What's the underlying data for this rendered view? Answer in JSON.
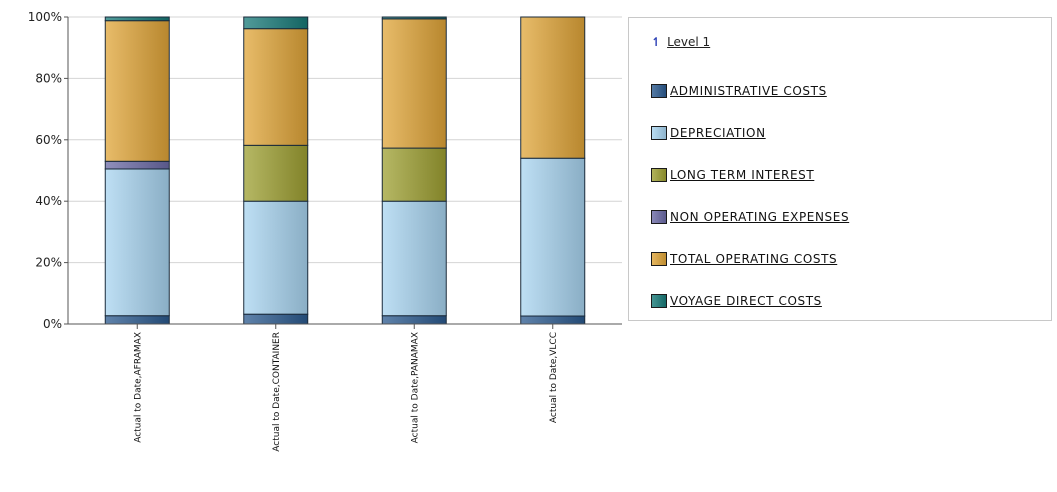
{
  "chart_data": {
    "type": "bar",
    "stacked": true,
    "normalized": true,
    "categories": [
      "Actual to Date,AFRAMAX",
      "Actual to Date,CONTAINER",
      "Actual to Date,PANAMAX",
      "Actual to Date,VLCC"
    ],
    "series": [
      {
        "name": "ADMINISTRATIVE COSTS",
        "color": "#2b5a8f",
        "values": [
          2.7,
          3.2,
          2.7,
          2.6
        ]
      },
      {
        "name": "DEPRECIATION",
        "color": "#a8d4f0",
        "values": [
          47.8,
          36.8,
          37.3,
          51.4
        ]
      },
      {
        "name": "LONG TERM INTEREST",
        "color": "#9ea032",
        "values": [
          0,
          18.2,
          17.3,
          0
        ]
      },
      {
        "name": "NON OPERATING EXPENSES",
        "color": "#6b6aa6",
        "values": [
          2.5,
          0,
          0,
          0
        ]
      },
      {
        "name": "TOTAL OPERATING COSTS",
        "color": "#e0a538",
        "values": [
          45.8,
          38.0,
          42.1,
          46.0
        ]
      },
      {
        "name": "VOYAGE DIRECT COSTS",
        "color": "#177a78",
        "values": [
          1.2,
          3.8,
          0.6,
          0
        ]
      }
    ],
    "yticks": [
      "0%",
      "20%",
      "40%",
      "60%",
      "80%",
      "100%"
    ],
    "ylim": [
      0,
      100
    ],
    "grid": true,
    "legend_position": "right"
  },
  "legend": {
    "up_link": "Level 1",
    "up_icon": "up-arrow-icon"
  }
}
